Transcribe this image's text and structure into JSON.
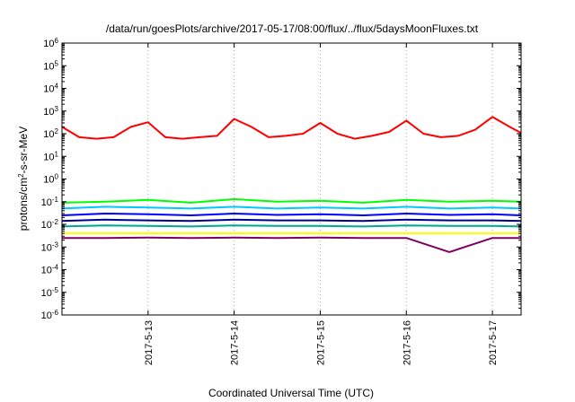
{
  "chart_data": {
    "type": "line",
    "title": "/data/run/goesPlots/archive/2017-05-17/08:00/flux/../flux/5daysMoonFluxes.txt",
    "xlabel": "Coordinated Universal Time (UTC)",
    "ylabel": "protons/cm2-s-sr-MeV",
    "ylabel_parts": [
      "protons/cm",
      "2",
      "-s-sr-MeV"
    ],
    "x_range": [
      "2017-05-12 00:00",
      "2017-05-17 08:00"
    ],
    "x_tick_labels": [
      "2017-5-13",
      "2017-5-14",
      "2017-5-15",
      "2017-5-16",
      "2017-5-17"
    ],
    "x_tick_values": [
      1,
      2,
      3,
      4,
      5
    ],
    "y_scale": "log",
    "ylim": [
      1e-06,
      1000000.0
    ],
    "y_tick_exponents": [
      -6,
      -5,
      -4,
      -3,
      -2,
      -1,
      0,
      1,
      2,
      3,
      4,
      5,
      6
    ],
    "grid": true,
    "legend": "none",
    "series": [
      {
        "color": "#ff0000",
        "x_days": [
          0.0,
          0.2,
          0.4,
          0.6,
          0.8,
          1.0,
          1.2,
          1.4,
          1.6,
          1.8,
          2.0,
          2.2,
          2.4,
          2.6,
          2.8,
          3.0,
          3.2,
          3.4,
          3.6,
          3.8,
          4.0,
          4.2,
          4.4,
          4.6,
          4.8,
          5.0,
          5.2,
          5.33
        ],
        "values": [
          200,
          70,
          60,
          70,
          200,
          320,
          70,
          60,
          70,
          80,
          450,
          200,
          70,
          80,
          100,
          300,
          100,
          60,
          80,
          120,
          380,
          100,
          70,
          80,
          150,
          550,
          200,
          110
        ]
      },
      {
        "color": "#00ff00",
        "x_days": [
          0.0,
          0.5,
          1.0,
          1.5,
          2.0,
          2.5,
          3.0,
          3.5,
          4.0,
          4.5,
          5.0,
          5.33
        ],
        "values": [
          0.09,
          0.1,
          0.12,
          0.09,
          0.13,
          0.1,
          0.11,
          0.09,
          0.12,
          0.1,
          0.11,
          0.1
        ]
      },
      {
        "color": "#00c8ff",
        "x_days": [
          0.0,
          0.5,
          1.0,
          1.5,
          2.0,
          2.5,
          3.0,
          3.5,
          4.0,
          4.5,
          5.0,
          5.33
        ],
        "values": [
          0.05,
          0.06,
          0.055,
          0.05,
          0.06,
          0.05,
          0.055,
          0.05,
          0.06,
          0.05,
          0.055,
          0.05
        ]
      },
      {
        "color": "#0000ff",
        "x_days": [
          0.0,
          0.5,
          1.0,
          1.5,
          2.0,
          2.5,
          3.0,
          3.5,
          4.0,
          4.5,
          5.0,
          5.33
        ],
        "values": [
          0.025,
          0.03,
          0.028,
          0.025,
          0.03,
          0.026,
          0.028,
          0.025,
          0.03,
          0.026,
          0.028,
          0.025
        ]
      },
      {
        "color": "#000090",
        "x_days": [
          0.0,
          0.5,
          1.0,
          1.5,
          2.0,
          2.5,
          3.0,
          3.5,
          4.0,
          4.5,
          5.0,
          5.33
        ],
        "values": [
          0.014,
          0.016,
          0.015,
          0.014,
          0.016,
          0.015,
          0.015,
          0.014,
          0.016,
          0.015,
          0.015,
          0.014
        ]
      },
      {
        "color": "#00a890",
        "x_days": [
          0.0,
          0.5,
          1.0,
          1.5,
          2.0,
          2.5,
          3.0,
          3.5,
          4.0,
          4.5,
          5.0,
          5.33
        ],
        "values": [
          0.008,
          0.009,
          0.0085,
          0.008,
          0.009,
          0.0085,
          0.0085,
          0.008,
          0.009,
          0.0085,
          0.0085,
          0.008
        ]
      },
      {
        "color": "#ffff00",
        "x_days": [
          0.0,
          0.5,
          1.0,
          1.5,
          2.0,
          2.5,
          3.0,
          3.5,
          4.0,
          4.5,
          5.0,
          5.33
        ],
        "values": [
          0.004,
          0.004,
          0.004,
          0.004,
          0.004,
          0.004,
          0.004,
          0.004,
          0.004,
          0.004,
          0.004,
          0.004
        ]
      },
      {
        "color": "#800060",
        "x_days": [
          0.0,
          0.5,
          1.0,
          1.5,
          2.0,
          2.5,
          3.0,
          3.5,
          4.0,
          4.5,
          5.0,
          5.33
        ],
        "values": [
          0.0025,
          0.0025,
          0.0026,
          0.0025,
          0.0026,
          0.0025,
          0.0026,
          0.0025,
          0.0025,
          0.0006,
          0.0025,
          0.0025
        ]
      }
    ]
  }
}
